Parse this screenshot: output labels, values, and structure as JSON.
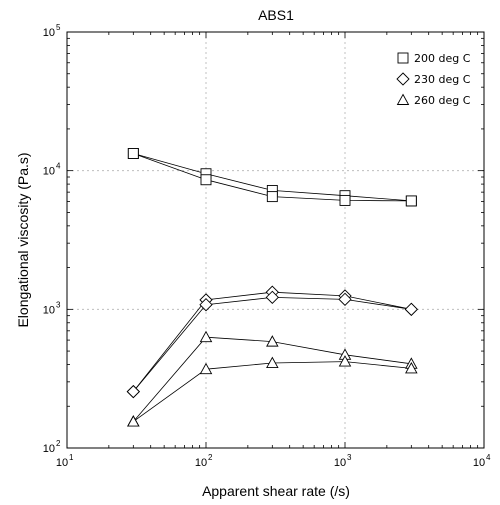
{
  "chart_data": {
    "type": "line",
    "title": "ABS1",
    "xlabel": "Apparent shear rate (/s)",
    "ylabel": "Elongational viscosity (Pa.s)",
    "x_scale": "log",
    "y_scale": "log",
    "xlim": [
      10,
      10000
    ],
    "ylim": [
      100,
      100000
    ],
    "grid": true,
    "legend_position": "top-right",
    "x_ticks": [
      {
        "base": "10",
        "exp": "1",
        "value": 10
      },
      {
        "base": "10",
        "exp": "2",
        "value": 100
      },
      {
        "base": "10",
        "exp": "3",
        "value": 1000
      },
      {
        "base": "10",
        "exp": "4",
        "value": 10000
      }
    ],
    "y_ticks": [
      {
        "base": "10",
        "exp": "2",
        "value": 100
      },
      {
        "base": "10",
        "exp": "3",
        "value": 1000
      },
      {
        "base": "10",
        "exp": "4",
        "value": 10000
      },
      {
        "base": "10",
        "exp": "5",
        "value": 100000
      }
    ],
    "series": [
      {
        "name": "200 deg C",
        "marker": "square",
        "lines": [
          {
            "x": [
              30,
              100,
              300,
              1000,
              3000
            ],
            "y": [
              13300,
              9500,
              7200,
              6600,
              6050
            ]
          },
          {
            "x": [
              30,
              100,
              300,
              1000,
              3000
            ],
            "y": [
              13300,
              8600,
              6500,
              6100,
              6050
            ]
          }
        ]
      },
      {
        "name": "230 deg C",
        "marker": "diamond",
        "lines": [
          {
            "x": [
              30,
              100,
              300,
              1000,
              3000
            ],
            "y": [
              255,
              1170,
              1330,
              1250,
              1000
            ]
          },
          {
            "x": [
              30,
              100,
              300,
              1000,
              3000
            ],
            "y": [
              255,
              1080,
              1220,
              1180,
              1000
            ]
          }
        ]
      },
      {
        "name": "260 deg C",
        "marker": "triangle",
        "lines": [
          {
            "x": [
              30,
              100,
              300,
              1000,
              3000
            ],
            "y": [
              155,
              630,
              585,
              470,
              405
            ]
          },
          {
            "x": [
              30,
              100,
              300,
              1000,
              3000
            ],
            "y": [
              155,
              370,
              410,
              420,
              375
            ]
          }
        ]
      }
    ]
  }
}
